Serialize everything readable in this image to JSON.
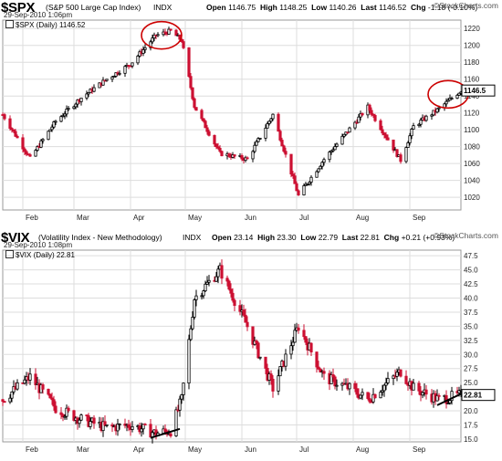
{
  "panels": [
    {
      "symbol": "$SPX",
      "description": "(S&P 500 Large Cap Index)",
      "exchange": "INDX",
      "date_line": "29-Sep-2010 1:06pm",
      "open_label": "Open",
      "open": "1146.75",
      "high_label": "High",
      "high": "1148.25",
      "low_label": "Low",
      "low": "1140.26",
      "last_label": "Last",
      "last": "1146.52",
      "chg_label": "Chg",
      "chg": "-1.18 (-0.10%)",
      "legend": "$SPX (Daily) 1146.52",
      "last_badge": "1146.5",
      "brand": "©StockCharts.com"
    },
    {
      "symbol": "$VIX",
      "description": "(Volatility Index - New Methodology)",
      "exchange": "INDX",
      "date_line": "29-Sep-2010 1:08pm",
      "open_label": "Open",
      "open": "23.14",
      "high_label": "High",
      "high": "23.30",
      "low_label": "Low",
      "low": "22.79",
      "last_label": "Last",
      "last": "22.81",
      "chg_label": "Chg",
      "chg": "+0.21 (+0.93%)",
      "legend": "$VIX (Daily) 22.81",
      "last_badge": "22.81",
      "brand": "©StockCharts.com"
    }
  ],
  "colors": {
    "up": "#000000",
    "down": "#cc1133",
    "grid": "#dddddd",
    "circle": "#cc0000",
    "trendline": "#000000"
  },
  "chart_data": [
    {
      "type": "candlestick",
      "title": "$SPX (S&P 500 Large Cap Index) INDX",
      "x_tick_labels": [
        "Feb",
        "Mar",
        "Apr",
        "May",
        "Jun",
        "Jul",
        "Aug",
        "Sep"
      ],
      "y_tick_labels": [
        "1220",
        "1200",
        "1180",
        "1160",
        "1140",
        "1120",
        "1100",
        "1080",
        "1060",
        "1040",
        "1020"
      ],
      "ylim": [
        1005,
        1230
      ],
      "grid": true,
      "x_start": "2010-01-21",
      "x_end": "2010-09-29",
      "series": [
        {
          "name": "$SPX (Daily)",
          "x": [
            "2010-01-21",
            "2010-02-05",
            "2010-02-19",
            "2010-03-05",
            "2010-03-19",
            "2010-04-01",
            "2010-04-15",
            "2010-04-23",
            "2010-04-29",
            "2010-05-06",
            "2010-05-20",
            "2010-06-04",
            "2010-06-18",
            "2010-07-02",
            "2010-07-16",
            "2010-07-30",
            "2010-08-09",
            "2010-08-27",
            "2010-09-03",
            "2010-09-17",
            "2010-09-29"
          ],
          "y": [
            1118,
            1066,
            1110,
            1138,
            1160,
            1178,
            1212,
            1217,
            1206,
            1128,
            1072,
            1065,
            1118,
            1022,
            1065,
            1101,
            1127,
            1064,
            1104,
            1125,
            1146.52
          ]
        }
      ],
      "annotations": [
        {
          "type": "circle",
          "x": "2010-04-18",
          "y": 1212
        },
        {
          "type": "circle",
          "x": "2010-09-22",
          "y": 1142
        }
      ]
    },
    {
      "type": "candlestick",
      "title": "$VIX (Volatility Index - New Methodology) INDX",
      "x_tick_labels": [
        "Feb",
        "Mar",
        "Apr",
        "May",
        "Jun",
        "Jul",
        "Aug",
        "Sep"
      ],
      "y_tick_labels": [
        "47.5",
        "45.0",
        "42.5",
        "40.0",
        "37.5",
        "35.0",
        "32.5",
        "30.0",
        "27.5",
        "25.0",
        "20.0",
        "17.5",
        "15.0"
      ],
      "ylim": [
        14.5,
        48.5
      ],
      "grid": true,
      "x_start": "2010-01-21",
      "x_end": "2010-09-29",
      "series": [
        {
          "name": "$VIX (Daily)",
          "x": [
            "2010-01-21",
            "2010-02-05",
            "2010-02-19",
            "2010-03-05",
            "2010-03-19",
            "2010-04-01",
            "2010-04-15",
            "2010-04-23",
            "2010-04-29",
            "2010-05-06",
            "2010-05-20",
            "2010-06-04",
            "2010-06-18",
            "2010-07-02",
            "2010-07-16",
            "2010-07-30",
            "2010-08-09",
            "2010-08-27",
            "2010-09-03",
            "2010-09-17",
            "2010-09-29"
          ],
          "y": [
            22.0,
            26.0,
            20.5,
            18.5,
            17.0,
            17.5,
            16.0,
            16.5,
            22.0,
            40.0,
            45.0,
            35.0,
            24.0,
            35.0,
            26.0,
            24.0,
            22.0,
            27.0,
            24.0,
            22.0,
            22.81
          ]
        }
      ],
      "annotations": [
        {
          "type": "trendline",
          "x1": "2010-04-12",
          "y1": 15.2,
          "x2": "2010-04-28",
          "y2": 16.8
        },
        {
          "type": "trendline",
          "x1": "2010-09-16",
          "y1": 21.0,
          "x2": "2010-09-29",
          "y2": 23.0
        }
      ]
    }
  ]
}
